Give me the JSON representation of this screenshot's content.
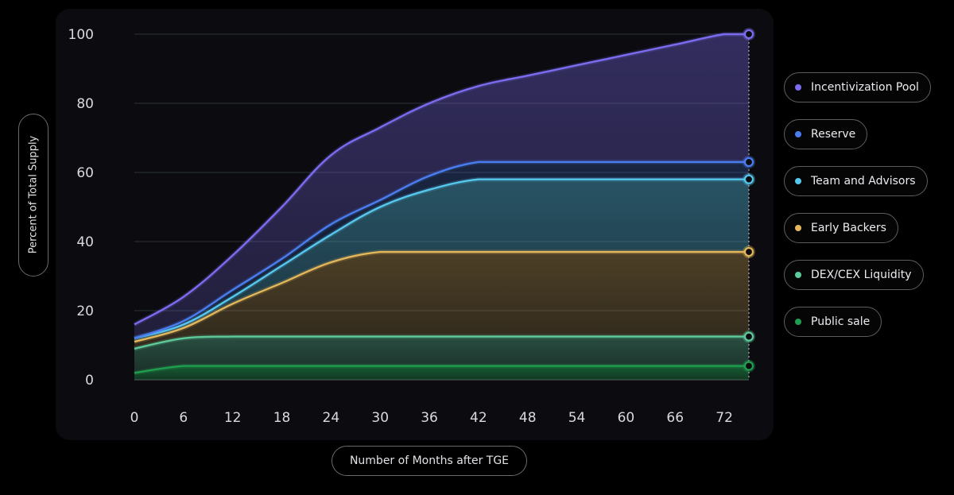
{
  "chart_data": {
    "type": "area",
    "xlabel": "Number of Months after TGE",
    "ylabel": "Percent of Total Supply",
    "xlim": [
      0,
      75
    ],
    "ylim": [
      0,
      100
    ],
    "x_ticks": [
      0,
      6,
      12,
      18,
      24,
      30,
      36,
      42,
      48,
      54,
      60,
      66,
      72
    ],
    "y_ticks": [
      0,
      20,
      40,
      60,
      80,
      100
    ],
    "grid": "horizontal",
    "legend_position": "right",
    "series": [
      {
        "name": "Incentivization Pool",
        "color": "#7b6cf0",
        "points": [
          [
            0,
            16
          ],
          [
            6,
            24
          ],
          [
            12,
            36
          ],
          [
            18,
            50
          ],
          [
            24,
            65
          ],
          [
            30,
            73
          ],
          [
            36,
            80
          ],
          [
            42,
            85
          ],
          [
            48,
            88
          ],
          [
            54,
            91
          ],
          [
            60,
            94
          ],
          [
            66,
            97
          ],
          [
            72,
            100
          ]
        ]
      },
      {
        "name": "Reserve",
        "color": "#4a7ef0",
        "points": [
          [
            0,
            12
          ],
          [
            6,
            17
          ],
          [
            12,
            26
          ],
          [
            18,
            35
          ],
          [
            24,
            45
          ],
          [
            30,
            52
          ],
          [
            36,
            59
          ],
          [
            42,
            63
          ],
          [
            48,
            63
          ],
          [
            54,
            63
          ],
          [
            60,
            63
          ],
          [
            66,
            63
          ],
          [
            72,
            63
          ]
        ]
      },
      {
        "name": "Team and Advisors",
        "color": "#56c8ee",
        "points": [
          [
            0,
            12
          ],
          [
            6,
            16
          ],
          [
            12,
            24
          ],
          [
            18,
            33
          ],
          [
            24,
            42
          ],
          [
            30,
            50
          ],
          [
            36,
            55
          ],
          [
            42,
            58
          ],
          [
            48,
            58
          ],
          [
            54,
            58
          ],
          [
            60,
            58
          ],
          [
            66,
            58
          ],
          [
            72,
            58
          ]
        ]
      },
      {
        "name": "Early Backers",
        "color": "#e3b75a",
        "points": [
          [
            0,
            11
          ],
          [
            6,
            15
          ],
          [
            12,
            22
          ],
          [
            18,
            28
          ],
          [
            24,
            34
          ],
          [
            30,
            37
          ],
          [
            36,
            37
          ],
          [
            42,
            37
          ],
          [
            48,
            37
          ],
          [
            54,
            37
          ],
          [
            60,
            37
          ],
          [
            66,
            37
          ],
          [
            72,
            37
          ]
        ]
      },
      {
        "name": "DEX/CEX Liquidity",
        "color": "#5ec99a",
        "points": [
          [
            0,
            9
          ],
          [
            6,
            12
          ],
          [
            12,
            12.5
          ],
          [
            18,
            12.5
          ],
          [
            24,
            12.5
          ],
          [
            30,
            12.5
          ],
          [
            36,
            12.5
          ],
          [
            42,
            12.5
          ],
          [
            48,
            12.5
          ],
          [
            54,
            12.5
          ],
          [
            60,
            12.5
          ],
          [
            66,
            12.5
          ],
          [
            72,
            12.5
          ]
        ]
      },
      {
        "name": "Public sale",
        "color": "#1f9e4f",
        "points": [
          [
            0,
            2
          ],
          [
            6,
            4
          ],
          [
            12,
            4
          ],
          [
            18,
            4
          ],
          [
            24,
            4
          ],
          [
            30,
            4
          ],
          [
            36,
            4
          ],
          [
            42,
            4
          ],
          [
            48,
            4
          ],
          [
            54,
            4
          ],
          [
            60,
            4
          ],
          [
            66,
            4
          ],
          [
            72,
            4
          ]
        ]
      }
    ]
  }
}
